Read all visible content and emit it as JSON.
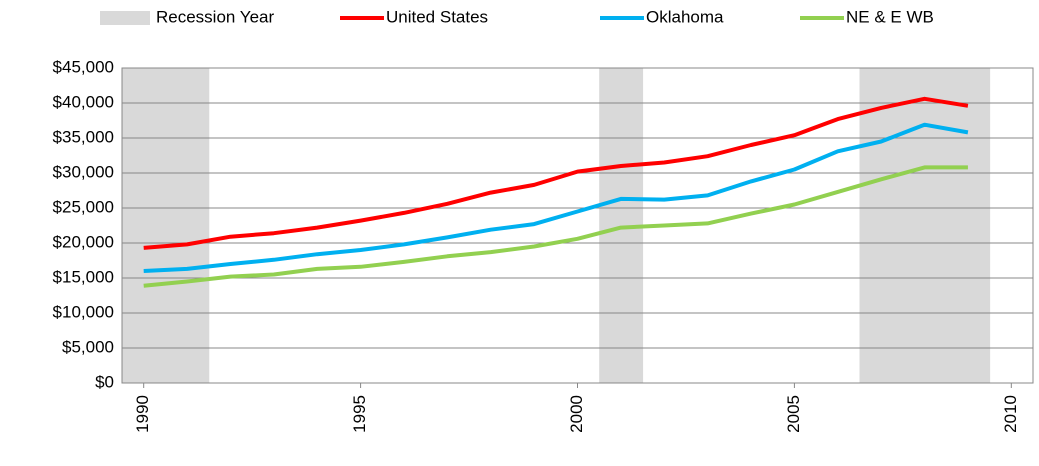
{
  "chart_data": {
    "type": "line",
    "x": [
      1990,
      1991,
      1992,
      1993,
      1994,
      1995,
      1996,
      1997,
      1998,
      1999,
      2000,
      2001,
      2002,
      2003,
      2004,
      2005,
      2006,
      2007,
      2008,
      2009
    ],
    "series": [
      {
        "name": "United States",
        "color": "#ff0000",
        "values": [
          19300,
          19800,
          20900,
          21400,
          22200,
          23200,
          24300,
          25600,
          27200,
          28300,
          30200,
          31000,
          31500,
          32400,
          34000,
          35400,
          37700,
          39300,
          40600,
          39600
        ]
      },
      {
        "name": "Oklahoma",
        "color": "#00b0f0",
        "values": [
          16000,
          16300,
          17000,
          17600,
          18400,
          19000,
          19800,
          20800,
          21900,
          22700,
          24500,
          26300,
          26200,
          26800,
          28800,
          30500,
          33100,
          34500,
          36900,
          35800
        ]
      },
      {
        "name": "NE & E WB",
        "color": "#92d050",
        "values": [
          13900,
          14500,
          15200,
          15500,
          16300,
          16600,
          17300,
          18100,
          18700,
          19500,
          20600,
          22200,
          22500,
          22800,
          24200,
          25500,
          27300,
          29100,
          30800,
          30800
        ]
      }
    ],
    "recession": {
      "name": "Recession Year",
      "color": "#d9d9d9",
      "years": [
        1990,
        1991,
        2001,
        2007,
        2008,
        2009
      ]
    },
    "xlim": [
      1989.5,
      2010.5
    ],
    "xticks": [
      1990,
      1995,
      2000,
      2005,
      2010
    ],
    "ylim": [
      0,
      45000
    ],
    "yticks": [
      {
        "value": 0,
        "label": "$0"
      },
      {
        "value": 5000,
        "label": "$5,000"
      },
      {
        "value": 10000,
        "label": "$10,000"
      },
      {
        "value": 15000,
        "label": "$15,000"
      },
      {
        "value": 20000,
        "label": "$20,000"
      },
      {
        "value": 25000,
        "label": "$25,000"
      },
      {
        "value": 30000,
        "label": "$30,000"
      },
      {
        "value": 35000,
        "label": "$35,000"
      },
      {
        "value": 40000,
        "label": "$40,000"
      },
      {
        "value": 45000,
        "label": "$45,000"
      }
    ],
    "grid": true,
    "legend": "top"
  }
}
